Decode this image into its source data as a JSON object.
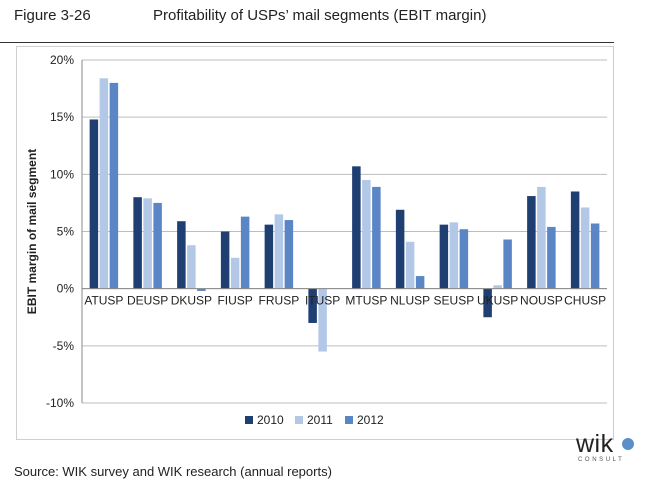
{
  "figure": {
    "number": "Figure 3-26",
    "title": "Profitability of USPs’ mail segments (EBIT margin)",
    "source": "Source:  WIK survey and WIK research (annual reports)"
  },
  "logo": {
    "text": "wik",
    "sub": "CONSULT"
  },
  "chart_data": {
    "type": "bar",
    "title": "",
    "xlabel": "",
    "ylabel": "EBIT margin of mail segment",
    "ylim": [
      -0.1,
      0.2
    ],
    "yticks": [
      -0.1,
      -0.05,
      0,
      0.05,
      0.1,
      0.15,
      0.2
    ],
    "ytick_labels": [
      "-10%",
      "-5%",
      "0%",
      "5%",
      "10%",
      "15%",
      "20%"
    ],
    "grid": true,
    "legend_position": "bottom",
    "categories": [
      "ATUSP",
      "DEUSP",
      "DKUSP",
      "FIUSP",
      "FRUSP",
      "ITUSP",
      "MTUSP",
      "NLUSP",
      "SEUSP",
      "UKUSP",
      "NOUSP",
      "CHUSP"
    ],
    "series": [
      {
        "name": "2010",
        "color": "#1f3f73",
        "values": [
          0.148,
          0.08,
          0.059,
          0.05,
          0.056,
          -0.03,
          0.107,
          0.069,
          0.056,
          -0.025,
          0.081,
          0.085
        ]
      },
      {
        "name": "2011",
        "color": "#b3c8e6",
        "values": [
          0.184,
          0.079,
          0.038,
          0.027,
          0.065,
          -0.055,
          0.095,
          0.041,
          0.058,
          0.003,
          0.089,
          0.071
        ]
      },
      {
        "name": "2012",
        "color": "#5a86c6",
        "values": [
          0.18,
          0.075,
          -0.002,
          0.063,
          0.06,
          null,
          0.089,
          0.011,
          0.052,
          0.043,
          0.054,
          0.057
        ]
      }
    ]
  }
}
